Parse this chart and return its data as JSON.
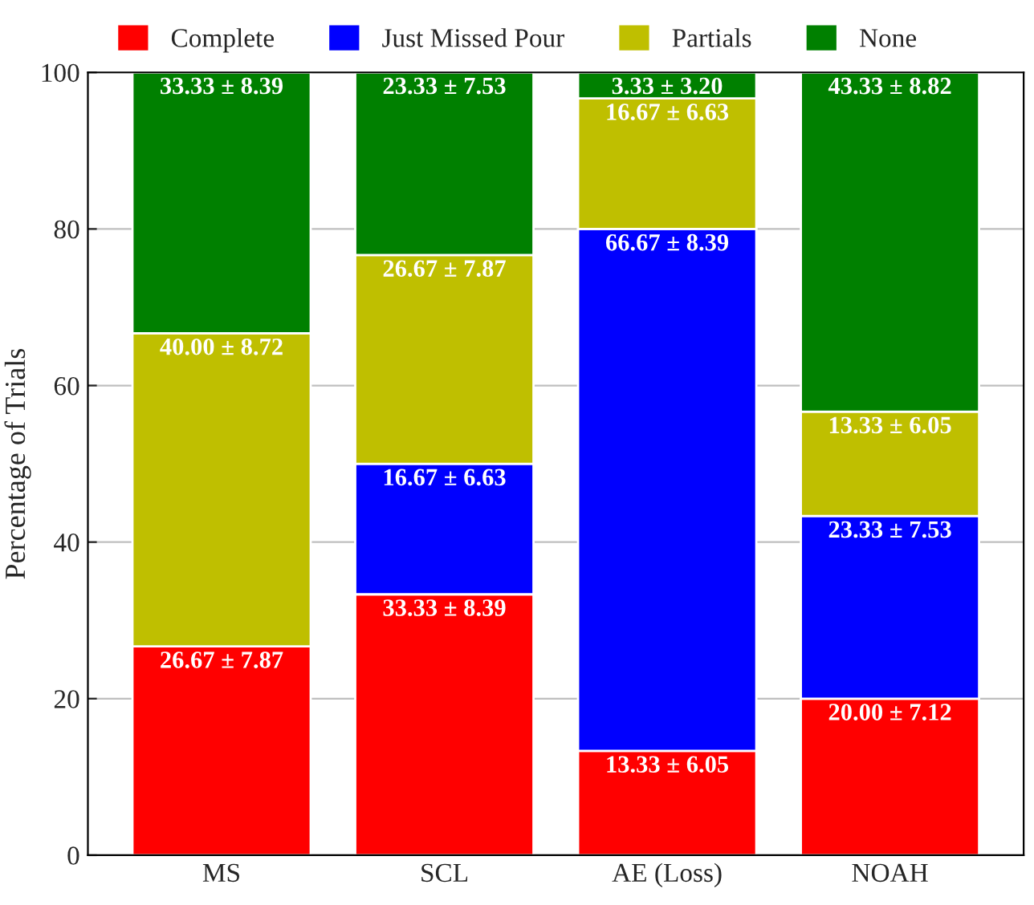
{
  "chart_data": {
    "type": "bar",
    "stacked": true,
    "ylabel": "Percentage of Trials",
    "categories": [
      "MS",
      "SCL",
      "AE (Loss)",
      "NOAH"
    ],
    "series": [
      {
        "name": "Complete",
        "color": "#ff0000",
        "values": [
          26.67,
          33.33,
          13.33,
          20.0
        ],
        "value_labels": [
          "26.67 ± 7.87",
          "33.33 ± 8.39",
          "13.33 ± 6.05",
          "20.00 ± 7.12"
        ]
      },
      {
        "name": "Just Missed Pour",
        "color": "#0000ff",
        "values": [
          0,
          16.67,
          66.67,
          23.33
        ],
        "value_labels": [
          null,
          "16.67 ± 6.63",
          "66.67 ± 8.39",
          "23.33 ± 7.53"
        ]
      },
      {
        "name": "Partials",
        "color": "#bfbf00",
        "values": [
          40.0,
          26.67,
          16.67,
          13.33
        ],
        "value_labels": [
          "40.00 ± 8.72",
          "26.67 ± 7.87",
          "16.67 ± 6.63",
          "13.33 ± 6.05"
        ]
      },
      {
        "name": "None",
        "color": "#008000",
        "values": [
          33.33,
          23.33,
          3.33,
          43.33
        ],
        "value_labels": [
          "33.33 ± 8.39",
          "23.33 ± 7.53",
          "3.33 ± 3.20",
          "43.33 ± 8.82"
        ]
      }
    ],
    "ylim": [
      0,
      100
    ],
    "yticks": [
      0,
      20,
      40,
      60,
      80,
      100
    ],
    "grid": "y",
    "legend": "top"
  }
}
